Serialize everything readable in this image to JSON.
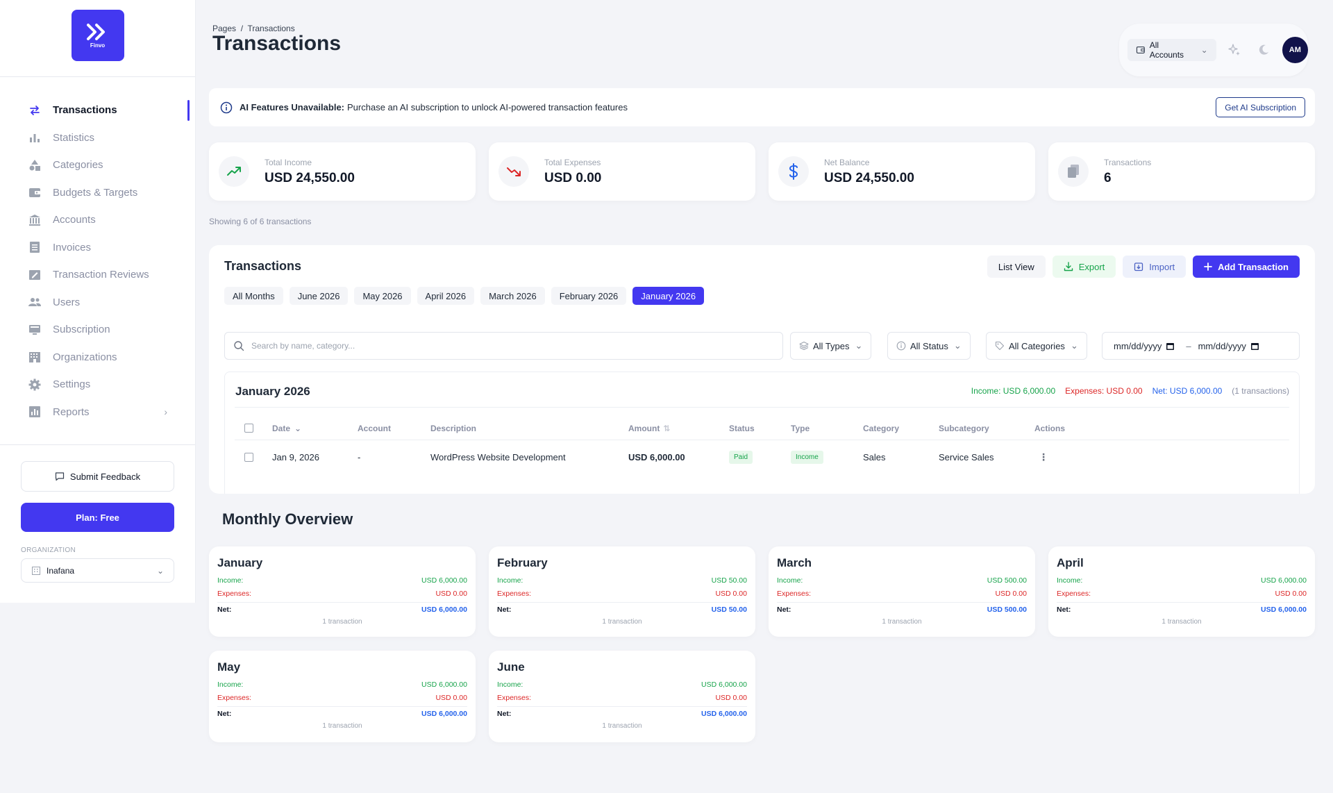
{
  "brand": {
    "logo_text": "Finvo"
  },
  "sidebar": {
    "items": [
      {
        "label": "Transactions",
        "icon": "arrows-swap-icon",
        "active": true
      },
      {
        "label": "Statistics",
        "icon": "bar-chart-icon"
      },
      {
        "label": "Categories",
        "icon": "shapes-icon"
      },
      {
        "label": "Budgets & Targets",
        "icon": "wallet-icon"
      },
      {
        "label": "Accounts",
        "icon": "bank-icon"
      },
      {
        "label": "Invoices",
        "icon": "document-icon"
      },
      {
        "label": "Transaction Reviews",
        "icon": "edit-square-icon"
      },
      {
        "label": "Users",
        "icon": "users-icon"
      },
      {
        "label": "Subscription",
        "icon": "monitor-icon"
      },
      {
        "label": "Organizations",
        "icon": "building-icon"
      },
      {
        "label": "Settings",
        "icon": "gear-icon"
      },
      {
        "label": "Reports",
        "icon": "report-icon",
        "has_chevron": true
      }
    ],
    "feedback_label": "Submit Feedback",
    "plan_label": "Plan: Free",
    "org_label": "ORGANIZATION",
    "org_value": "Inafana"
  },
  "header": {
    "breadcrumb": "Pages  /  Transactions",
    "title": "Transactions",
    "accounts_label": "All Accounts",
    "avatar_initials": "AM"
  },
  "alert": {
    "title": "AI Features Unavailable:",
    "message": "Purchase an AI subscription to unlock AI-powered transaction features",
    "button": "Get AI Subscription"
  },
  "stats": [
    {
      "label": "Total Income",
      "value": "USD 24,550.00",
      "icon": "trend-up-icon",
      "color": "#16a34a"
    },
    {
      "label": "Total Expenses",
      "value": "USD 0.00",
      "icon": "trend-down-icon",
      "color": "#dc2626"
    },
    {
      "label": "Net Balance",
      "value": "USD 24,550.00",
      "icon": "dollar-icon",
      "color": "#2563eb"
    },
    {
      "label": "Transactions",
      "value": "6",
      "icon": "copy-icon",
      "color": "#9ca3af"
    }
  ],
  "showing_text": "Showing 6 of 6 transactions",
  "transactions": {
    "title": "Transactions",
    "list_view": "List View",
    "export": "Export",
    "import": "Import",
    "add": "Add Transaction",
    "tabs": [
      "All Months",
      "June 2026",
      "May 2026",
      "April 2026",
      "March 2026",
      "February 2026",
      "January 2026"
    ],
    "active_tab": "January 2026",
    "search_placeholder": "Search by name, category...",
    "filters": {
      "types": "All Types",
      "status": "All Status",
      "categories": "All Categories",
      "date_from": "mm/dd/yyyy",
      "date_to": "mm/dd/yyyy",
      "date_sep": "–"
    },
    "group": {
      "title": "January 2026",
      "income": "Income: USD 6,000.00",
      "expenses": "Expenses: USD 0.00",
      "net": "Net: USD 6,000.00",
      "count": "(1 transactions)"
    },
    "columns": [
      "Date",
      "Account",
      "Description",
      "Amount",
      "Status",
      "Type",
      "Category",
      "Subcategory",
      "Actions"
    ],
    "rows": [
      {
        "date": "Jan 9, 2026",
        "account": "-",
        "description": "WordPress Website Development",
        "amount": "USD 6,000.00",
        "status": "Paid",
        "type": "Income",
        "category": "Sales",
        "subcategory": "Service Sales"
      }
    ]
  },
  "monthly": {
    "title": "Monthly Overview",
    "labels": {
      "income": "Income:",
      "expenses": "Expenses:",
      "net": "Net:"
    },
    "cards": [
      {
        "name": "January",
        "income": "USD 6,000.00",
        "expenses": "USD 0.00",
        "net": "USD 6,000.00",
        "count": "1 transaction"
      },
      {
        "name": "February",
        "income": "USD 50.00",
        "expenses": "USD 0.00",
        "net": "USD 50.00",
        "count": "1 transaction"
      },
      {
        "name": "March",
        "income": "USD 500.00",
        "expenses": "USD 0.00",
        "net": "USD 500.00",
        "count": "1 transaction"
      },
      {
        "name": "April",
        "income": "USD 6,000.00",
        "expenses": "USD 0.00",
        "net": "USD 6,000.00",
        "count": "1 transaction"
      },
      {
        "name": "May",
        "income": "USD 6,000.00",
        "expenses": "USD 0.00",
        "net": "USD 6,000.00",
        "count": "1 transaction"
      },
      {
        "name": "June",
        "income": "USD 6,000.00",
        "expenses": "USD 0.00",
        "net": "USD 6,000.00",
        "count": "1 transaction"
      }
    ]
  },
  "colors": {
    "accent": "#4338f0",
    "income": "#16a34a",
    "expense": "#dc2626",
    "net": "#2563eb"
  }
}
